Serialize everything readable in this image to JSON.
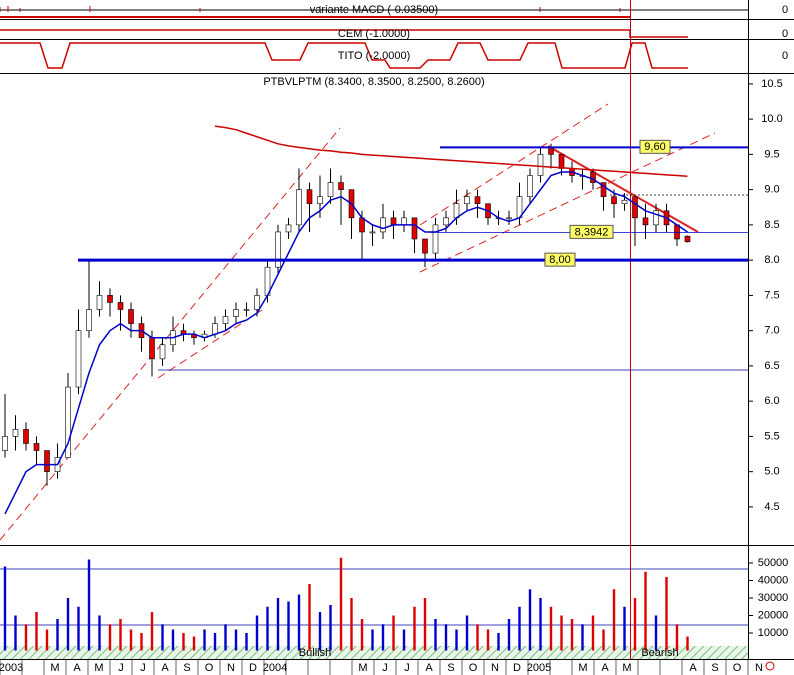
{
  "indicators": [
    {
      "name": "variante MACD (-0.03500)",
      "zero": 0
    },
    {
      "name": "CEM (-1.0000)",
      "zero": 0
    },
    {
      "name": "TITO (-2.0000)",
      "zero": 0
    }
  ],
  "chart_data": [
    {
      "type": "candlestick",
      "title": "PTBVLPTM (8.3400, 8.3500, 8.2500, 8.2600)",
      "open": [
        5.3,
        5.5,
        5.6,
        5.4,
        5.3,
        5.0,
        5.2,
        6.2,
        7.0,
        7.3,
        7.5,
        7.4,
        7.3,
        7.1,
        6.9,
        6.6,
        6.8,
        7.0,
        6.95,
        6.9,
        6.95,
        7.1,
        7.2,
        7.3,
        7.3,
        7.5,
        7.9,
        8.4,
        8.5,
        9.0,
        8.8,
        8.9,
        9.1,
        9.0,
        8.6,
        8.4,
        8.4,
        8.6,
        8.5,
        8.6,
        8.3,
        8.1,
        8.5,
        8.6,
        8.8,
        8.9,
        8.8,
        8.6,
        8.6,
        8.6,
        8.9,
        9.2,
        9.6,
        9.5,
        9.3,
        9.2,
        9.25,
        9.1,
        8.9,
        8.8,
        8.9,
        8.6,
        8.5,
        8.7,
        8.5,
        8.34
      ],
      "high": [
        6.1,
        5.8,
        5.7,
        5.5,
        5.3,
        5.4,
        6.4,
        7.3,
        8.0,
        7.7,
        7.6,
        7.5,
        7.4,
        7.2,
        7.0,
        6.9,
        7.2,
        7.1,
        7.0,
        7.0,
        7.2,
        7.3,
        7.4,
        7.4,
        7.6,
        8.0,
        8.5,
        8.6,
        9.3,
        9.1,
        9.2,
        9.3,
        9.2,
        9.0,
        8.7,
        8.5,
        8.8,
        8.7,
        8.7,
        8.6,
        8.3,
        8.6,
        8.7,
        9.0,
        9.0,
        9.0,
        8.8,
        8.7,
        8.7,
        9.1,
        9.3,
        9.6,
        9.65,
        9.5,
        9.4,
        9.3,
        9.3,
        9.1,
        9.0,
        8.95,
        8.9,
        8.8,
        8.8,
        8.8,
        8.5,
        8.35
      ],
      "low": [
        5.2,
        5.3,
        5.3,
        5.1,
        4.8,
        4.9,
        5.2,
        6.1,
        6.9,
        7.2,
        7.2,
        7.0,
        6.9,
        6.7,
        6.35,
        6.5,
        6.7,
        6.85,
        6.8,
        6.85,
        6.9,
        7.0,
        7.1,
        7.2,
        7.2,
        7.4,
        7.8,
        8.3,
        8.4,
        8.4,
        8.6,
        8.8,
        8.5,
        8.3,
        8.0,
        8.2,
        8.3,
        8.3,
        8.4,
        8.1,
        7.9,
        8.0,
        8.4,
        8.5,
        8.7,
        8.6,
        8.5,
        8.5,
        8.5,
        8.5,
        8.8,
        9.1,
        9.3,
        9.2,
        9.1,
        9.0,
        9.0,
        8.7,
        8.6,
        8.7,
        8.2,
        8.3,
        8.4,
        8.4,
        8.2,
        8.25
      ],
      "close": [
        5.5,
        5.6,
        5.4,
        5.3,
        5.0,
        5.2,
        6.2,
        7.0,
        7.3,
        7.5,
        7.4,
        7.3,
        7.1,
        6.9,
        6.6,
        6.8,
        7.0,
        6.95,
        6.9,
        6.95,
        7.1,
        7.2,
        7.3,
        7.3,
        7.5,
        7.9,
        8.4,
        8.5,
        9.0,
        8.8,
        8.9,
        9.1,
        9.0,
        8.6,
        8.4,
        8.4,
        8.6,
        8.5,
        8.6,
        8.3,
        8.1,
        8.5,
        8.6,
        8.8,
        8.9,
        8.8,
        8.6,
        8.6,
        8.6,
        8.9,
        9.2,
        9.5,
        9.5,
        9.3,
        9.2,
        9.2,
        9.1,
        8.9,
        8.8,
        8.85,
        8.6,
        8.5,
        8.7,
        8.5,
        8.3,
        8.26
      ],
      "series": [
        {
          "color": "#0000cc",
          "values": [
            4.4,
            4.7,
            5.0,
            5.1,
            5.1,
            5.1,
            5.4,
            5.9,
            6.4,
            6.8,
            7.0,
            7.1,
            7.0,
            7.0,
            6.9,
            6.9,
            6.9,
            6.95,
            6.95,
            6.9,
            6.95,
            7.0,
            7.1,
            7.15,
            7.25,
            7.5,
            7.8,
            8.1,
            8.4,
            8.6,
            8.7,
            8.85,
            8.9,
            8.8,
            8.6,
            8.5,
            8.45,
            8.5,
            8.5,
            8.5,
            8.4,
            8.4,
            8.45,
            8.6,
            8.7,
            8.75,
            8.7,
            8.6,
            8.55,
            8.6,
            8.8,
            9.0,
            9.2,
            9.25,
            9.25,
            9.2,
            9.15,
            9.05,
            8.95,
            8.9,
            8.8,
            8.7,
            8.65,
            8.6,
            8.5,
            8.4
          ]
        },
        {
          "color": "#cc0000",
          "values": [
            null,
            null,
            null,
            null,
            null,
            null,
            null,
            null,
            null,
            null,
            null,
            null,
            null,
            null,
            null,
            null,
            null,
            null,
            null,
            null,
            9.9,
            9.88,
            9.85,
            9.8,
            9.75,
            9.7,
            9.65,
            9.62,
            9.6,
            9.58,
            9.56,
            9.55,
            9.53,
            9.52,
            9.5,
            9.49,
            9.48,
            9.47,
            9.46,
            9.45,
            9.44,
            9.43,
            9.42,
            9.41,
            9.4,
            9.39,
            9.38,
            9.37,
            9.36,
            9.35,
            9.34,
            9.33,
            9.32,
            9.31,
            9.3,
            9.29,
            9.28,
            9.27,
            9.26,
            9.25,
            9.24,
            9.23,
            9.22,
            9.21,
            9.2,
            9.19
          ]
        }
      ],
      "levels": [
        {
          "value": 9.6,
          "label": "9,60"
        },
        {
          "value": 8.3942,
          "label": "8,3942"
        },
        {
          "value": 8,
          "label": "8,00"
        }
      ],
      "ylim": [
        3.96,
        10.64
      ],
      "yticks": [
        4.5,
        {
          "value": 5,
          "label": "5.0"
        },
        5.5,
        {
          "value": 6,
          "label": "6.0"
        },
        6.5,
        {
          "value": 7,
          "label": "7.0"
        },
        7.5,
        {
          "value": 8,
          "label": "8.0"
        },
        8.5,
        {
          "value": 9,
          "label": "9.0"
        },
        9.5,
        {
          "value": 10,
          "label": "10.0"
        },
        10.5
      ]
    },
    {
      "type": "bar",
      "values": [
        48000,
        20000,
        15000,
        22000,
        12000,
        18000,
        30000,
        25000,
        52000,
        20000,
        15000,
        18000,
        12000,
        10000,
        22000,
        15000,
        12000,
        10000,
        8000,
        12000,
        10000,
        15000,
        12000,
        10000,
        20000,
        25000,
        30000,
        28000,
        32000,
        38000,
        22000,
        26000,
        53000,
        30000,
        18000,
        12000,
        15000,
        20000,
        12000,
        25000,
        30000,
        18000,
        15000,
        12000,
        20000,
        15000,
        12000,
        10000,
        18000,
        25000,
        35000,
        30000,
        25000,
        20000,
        18000,
        15000,
        20000,
        12000,
        35000,
        25000,
        30000,
        45000,
        20000,
        42000,
        15000,
        8000
      ],
      "colors": {
        "up": "#0000cc",
        "down": "#dd0000"
      },
      "ylim": [
        0,
        60000
      ],
      "yticks": [
        10000,
        20000,
        30000,
        40000,
        50000
      ]
    }
  ],
  "x_axis": [
    "2003",
    null,
    "M",
    "A",
    "M",
    "J",
    "J",
    "A",
    "S",
    "O",
    "N",
    "D",
    "2004",
    null,
    null,
    null,
    "M",
    "J",
    "J",
    "A",
    "S",
    "O",
    "N",
    "D",
    "2005",
    null,
    "M",
    "A",
    "M",
    null,
    null,
    "A",
    "S",
    "O",
    "N"
  ],
  "annotations": [
    "Bullish",
    "Bearish"
  ]
}
